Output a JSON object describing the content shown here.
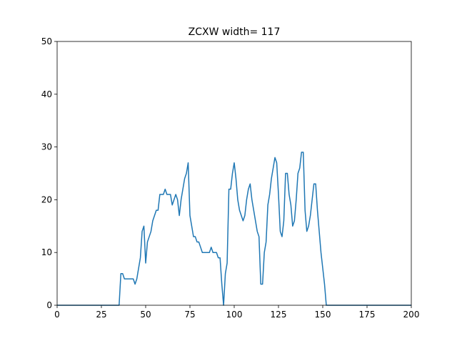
{
  "chart_data": {
    "type": "line",
    "title": "ZCXW width= 117",
    "x": [
      0,
      35,
      36,
      37,
      38,
      39,
      40,
      41,
      42,
      43,
      44,
      45,
      46,
      47,
      48,
      49,
      50,
      51,
      52,
      53,
      54,
      55,
      56,
      57,
      58,
      59,
      60,
      61,
      62,
      63,
      64,
      65,
      66,
      67,
      68,
      69,
      70,
      71,
      72,
      73,
      74,
      75,
      76,
      77,
      78,
      79,
      80,
      81,
      82,
      83,
      84,
      85,
      86,
      87,
      88,
      89,
      90,
      91,
      92,
      93,
      94,
      95,
      96,
      97,
      98,
      99,
      100,
      101,
      102,
      103,
      104,
      105,
      106,
      107,
      108,
      109,
      110,
      111,
      112,
      113,
      114,
      115,
      116,
      117,
      118,
      119,
      120,
      121,
      122,
      123,
      124,
      125,
      126,
      127,
      128,
      129,
      130,
      131,
      132,
      133,
      134,
      135,
      136,
      137,
      138,
      139,
      140,
      141,
      142,
      143,
      144,
      145,
      146,
      147,
      148,
      149,
      150,
      151,
      152,
      200
    ],
    "series": [
      {
        "color": "#1f77b4",
        "values": [
          0,
          0,
          6,
          6,
          5,
          5,
          5,
          5,
          5,
          5,
          4,
          5,
          7,
          9,
          14,
          15,
          8,
          12,
          13,
          14,
          16,
          17,
          18,
          18,
          21,
          21,
          21,
          22,
          21,
          21,
          21,
          19,
          20,
          21,
          20,
          17,
          20,
          22,
          24,
          25,
          27,
          17,
          15,
          13,
          13,
          12,
          12,
          11,
          10,
          10,
          10,
          10,
          10,
          11,
          10,
          10,
          10,
          9,
          9,
          4,
          0,
          6,
          8,
          22,
          22,
          25,
          27,
          24,
          20,
          18,
          17,
          16,
          17,
          20,
          22,
          23,
          20,
          18,
          16,
          14,
          13,
          4,
          4,
          10,
          12,
          19,
          21,
          24,
          26,
          28,
          27,
          21,
          14,
          13,
          16,
          25,
          25,
          21,
          19,
          15,
          16,
          20,
          25,
          26,
          29,
          29,
          18,
          14,
          15,
          17,
          20,
          23,
          23,
          18,
          14,
          10,
          7,
          4,
          0,
          0
        ]
      }
    ],
    "xlim": [
      0,
      200
    ],
    "xticks": [
      0,
      25,
      50,
      75,
      100,
      125,
      150,
      175,
      200
    ],
    "ylim": [
      0,
      50
    ],
    "yticks": [
      0,
      10,
      20,
      30,
      40,
      50
    ],
    "grid": false
  }
}
